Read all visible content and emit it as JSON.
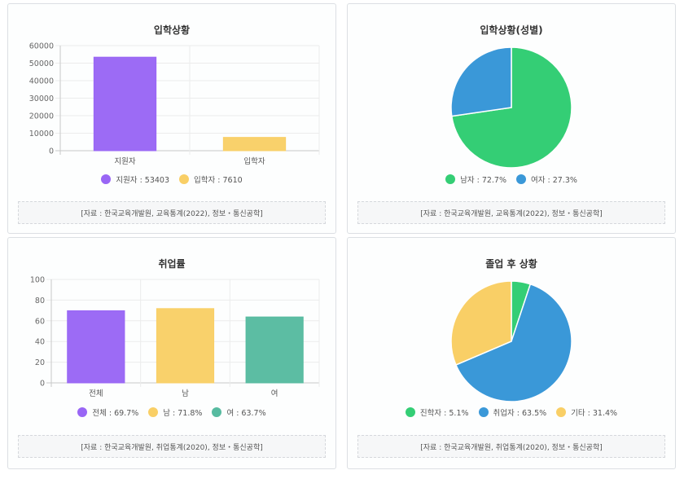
{
  "chart_data": [
    {
      "type": "bar",
      "title": "입학상황",
      "categories": [
        "지원자",
        "입학자"
      ],
      "values": [
        53403,
        7610
      ],
      "colors": [
        "#9966f5",
        "#f9cf66"
      ],
      "ylim": [
        0,
        60000
      ],
      "yticks": [
        0,
        10000,
        20000,
        30000,
        40000,
        50000,
        60000
      ],
      "grid": true,
      "legend": [
        "지원자 : 53403",
        "입학자 : 7610"
      ],
      "legend_position": "bottom",
      "source": "[자료 : 한국교육개발원, 교육통계(2022), 정보・통신공학]"
    },
    {
      "type": "pie",
      "title": "입학상황(성별)",
      "labels": [
        "남자",
        "여자"
      ],
      "values": [
        72.7,
        27.3
      ],
      "colors": [
        "#34ce75",
        "#3a98d8"
      ],
      "legend": [
        "남자 : 72.7%",
        "여자 : 27.3%"
      ],
      "legend_position": "bottom",
      "source": "[자료 : 한국교육개발원, 교육통계(2022), 정보・통신공학]"
    },
    {
      "type": "bar",
      "title": "취업률",
      "categories": [
        "전체",
        "남",
        "여"
      ],
      "values": [
        69.7,
        71.8,
        63.7
      ],
      "colors": [
        "#9966f5",
        "#f9cf66",
        "#57bba0"
      ],
      "ylim": [
        0,
        100
      ],
      "yticks": [
        0,
        20,
        40,
        60,
        80,
        100
      ],
      "grid": true,
      "legend": [
        "전체 : 69.7%",
        "남 : 71.8%",
        "여 : 63.7%"
      ],
      "legend_position": "bottom",
      "source": "[자료 : 한국교육개발원, 취업통계(2020), 정보・통신공학]"
    },
    {
      "type": "pie",
      "title": "졸업 후 상황",
      "labels": [
        "진학자",
        "취업자",
        "기타"
      ],
      "values": [
        5.1,
        63.5,
        31.4
      ],
      "colors": [
        "#34ce75",
        "#3a98d8",
        "#f9cf66"
      ],
      "legend": [
        "진학자 : 5.1%",
        "취업자 : 63.5%",
        "기타 : 31.4%"
      ],
      "legend_position": "bottom",
      "source": "[자료 : 한국교육개발원, 취업통계(2020), 정보・통신공학]"
    }
  ]
}
